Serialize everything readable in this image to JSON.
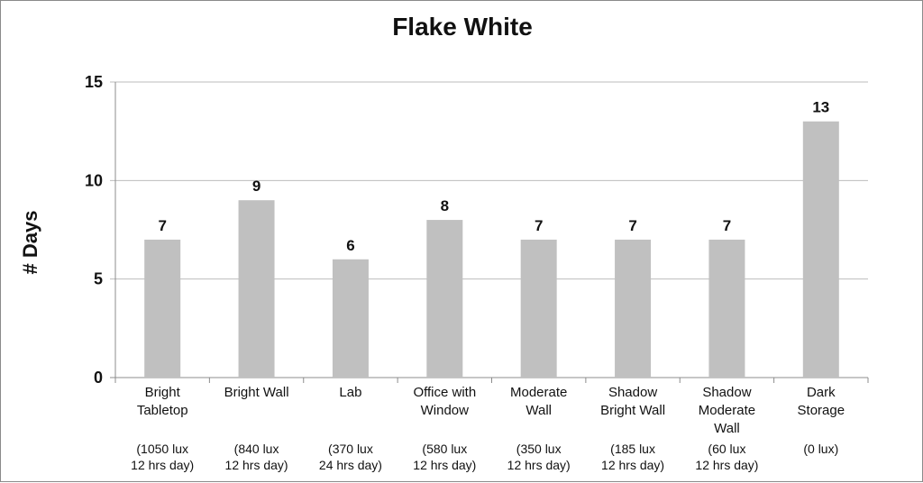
{
  "chart_data": {
    "type": "bar",
    "title": "Flake White",
    "xlabel": "",
    "ylabel": "# Days",
    "ylim": [
      0,
      15
    ],
    "yticks": [
      0,
      5,
      10,
      15
    ],
    "grid": true,
    "bar_color": "#c0c0c0",
    "categories": [
      {
        "label": [
          "Bright",
          "Tabletop"
        ],
        "sublabel": [
          "(1050 lux",
          "12 hrs day)"
        ]
      },
      {
        "label": [
          "Bright Wall"
        ],
        "sublabel": [
          "(840 lux",
          "12 hrs day)"
        ]
      },
      {
        "label": [
          "Lab"
        ],
        "sublabel": [
          "(370 lux",
          "24 hrs day)"
        ]
      },
      {
        "label": [
          "Office with",
          "Window"
        ],
        "sublabel": [
          "(580 lux",
          "12 hrs day)"
        ]
      },
      {
        "label": [
          "Moderate",
          "Wall"
        ],
        "sublabel": [
          "(350 lux",
          "12 hrs day)"
        ]
      },
      {
        "label": [
          "Shadow",
          "Bright Wall"
        ],
        "sublabel": [
          "(185 lux",
          "12 hrs day)"
        ]
      },
      {
        "label": [
          "Shadow",
          "Moderate",
          "Wall"
        ],
        "sublabel": [
          "(60 lux",
          "12 hrs day)"
        ]
      },
      {
        "label": [
          "Dark",
          "Storage"
        ],
        "sublabel": [
          "(0 lux)"
        ]
      }
    ],
    "values": [
      7,
      9,
      6,
      8,
      7,
      7,
      7,
      13
    ]
  }
}
